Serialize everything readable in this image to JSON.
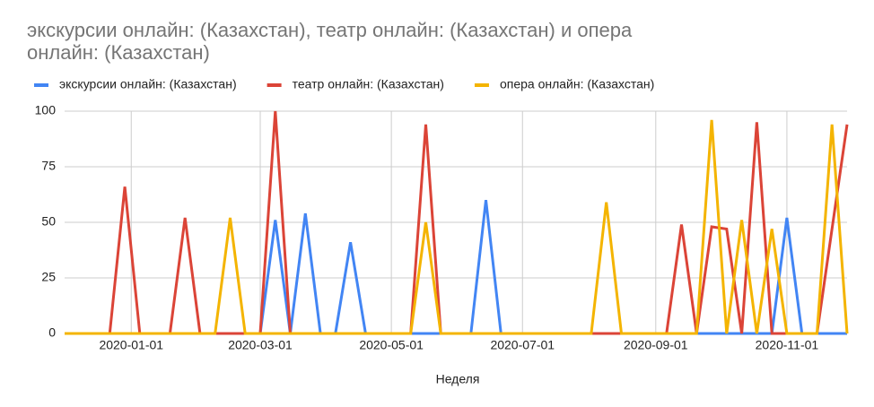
{
  "chart_data": {
    "type": "line",
    "title": "экскурсии онлайн: (Казахстан), театр онлайн: (Казахстан) и опера онлайн: (Казахстан)",
    "xlabel": "Неделя",
    "x": [
      "2019-12-01",
      "2019-12-08",
      "2019-12-15",
      "2019-12-22",
      "2019-12-29",
      "2020-01-05",
      "2020-01-12",
      "2020-01-19",
      "2020-01-26",
      "2020-02-02",
      "2020-02-09",
      "2020-02-16",
      "2020-02-23",
      "2020-03-01",
      "2020-03-08",
      "2020-03-15",
      "2020-03-22",
      "2020-03-29",
      "2020-04-05",
      "2020-04-12",
      "2020-04-19",
      "2020-04-26",
      "2020-05-03",
      "2020-05-10",
      "2020-05-17",
      "2020-05-24",
      "2020-05-31",
      "2020-06-07",
      "2020-06-14",
      "2020-06-21",
      "2020-06-28",
      "2020-07-05",
      "2020-07-12",
      "2020-07-19",
      "2020-07-26",
      "2020-08-02",
      "2020-08-09",
      "2020-08-16",
      "2020-08-23",
      "2020-08-30",
      "2020-09-06",
      "2020-09-13",
      "2020-09-20",
      "2020-09-27",
      "2020-10-04",
      "2020-10-11",
      "2020-10-18",
      "2020-10-25",
      "2020-11-01",
      "2020-11-08",
      "2020-11-15",
      "2020-11-22",
      "2020-11-29"
    ],
    "series": [
      {
        "name": "экскурсии онлайн: (Казахстан)",
        "color": "#4285f4",
        "values": [
          0,
          0,
          0,
          0,
          0,
          0,
          0,
          0,
          0,
          0,
          0,
          0,
          0,
          0,
          51,
          0,
          54,
          0,
          0,
          41,
          0,
          0,
          0,
          0,
          0,
          0,
          0,
          0,
          60,
          0,
          0,
          0,
          0,
          0,
          0,
          0,
          0,
          0,
          0,
          0,
          0,
          0,
          0,
          0,
          0,
          0,
          0,
          0,
          52,
          0,
          0,
          0,
          0
        ]
      },
      {
        "name": "театр онлайн: (Казахстан)",
        "color": "#db4437",
        "values": [
          0,
          0,
          0,
          0,
          66,
          0,
          0,
          0,
          52,
          0,
          0,
          0,
          0,
          0,
          100,
          0,
          0,
          0,
          0,
          0,
          0,
          0,
          0,
          0,
          94,
          0,
          0,
          0,
          0,
          0,
          0,
          0,
          0,
          0,
          0,
          0,
          0,
          0,
          0,
          0,
          0,
          49,
          0,
          48,
          47,
          0,
          95,
          0,
          0,
          0,
          0,
          47,
          94
        ]
      },
      {
        "name": "опера онлайн: (Казахстан)",
        "color": "#f4b400",
        "values": [
          0,
          0,
          0,
          0,
          0,
          0,
          0,
          0,
          0,
          0,
          0,
          52,
          0,
          0,
          0,
          0,
          0,
          0,
          0,
          0,
          0,
          0,
          0,
          0,
          50,
          0,
          0,
          0,
          0,
          0,
          0,
          0,
          0,
          0,
          0,
          0,
          59,
          0,
          0,
          0,
          0,
          0,
          0,
          96,
          0,
          51,
          0,
          47,
          0,
          0,
          0,
          94,
          0
        ]
      }
    ],
    "xlim": [
      "2019-12-01",
      "2020-11-29"
    ],
    "xticks": [
      "2020-01-01",
      "2020-03-01",
      "2020-05-01",
      "2020-07-01",
      "2020-09-01",
      "2020-11-01"
    ],
    "ylim": [
      0,
      100
    ],
    "yticks": [
      0,
      25,
      50,
      75,
      100
    ],
    "grid": true,
    "legend": "top"
  }
}
